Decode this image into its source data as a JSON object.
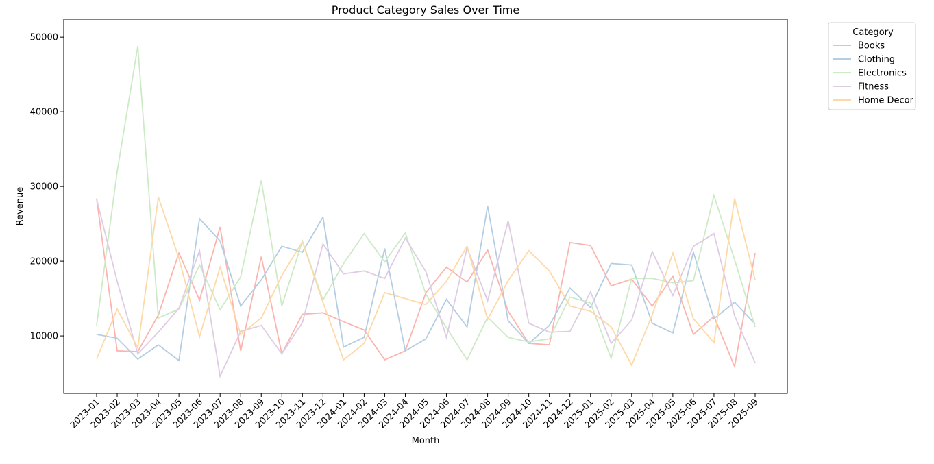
{
  "chart_data": {
    "type": "line",
    "title": "Product Category Sales Over Time",
    "xlabel": "Month",
    "ylabel": "Revenue",
    "ylim": [
      2300,
      52400
    ],
    "yticks": [
      10000,
      20000,
      30000,
      40000,
      50000
    ],
    "grid": false,
    "legend_title": "Category",
    "legend_position": "outside-top-right",
    "categories": [
      "2023-01",
      "2023-02",
      "2023-03",
      "2023-04",
      "2023-05",
      "2023-06",
      "2023-07",
      "2023-08",
      "2023-09",
      "2023-10",
      "2023-11",
      "2023-12",
      "2024-01",
      "2024-02",
      "2024-03",
      "2024-04",
      "2024-05",
      "2024-06",
      "2024-07",
      "2024-08",
      "2024-09",
      "2024-10",
      "2024-11",
      "2024-12",
      "2025-01",
      "2025-02",
      "2025-03",
      "2025-04",
      "2025-05",
      "2025-06",
      "2025-07",
      "2025-08",
      "2025-09"
    ],
    "series": [
      {
        "name": "Books",
        "color": "#fbb4ae",
        "values": [
          28400,
          8000,
          7900,
          12800,
          21100,
          14800,
          24600,
          8000,
          20600,
          7600,
          12900,
          13100,
          11900,
          10800,
          6800,
          8000,
          15800,
          19200,
          17200,
          21500,
          13300,
          9000,
          8800,
          22500,
          22100,
          16700,
          17600,
          14000,
          18000,
          10200,
          12600,
          5900,
          21100
        ]
      },
      {
        "name": "Clothing",
        "color": "#b3cde3",
        "values": [
          10200,
          9700,
          6900,
          8800,
          6700,
          25700,
          22700,
          14000,
          17500,
          22000,
          21200,
          25900,
          8500,
          9800,
          21700,
          8000,
          9600,
          14900,
          11200,
          27400,
          12000,
          9000,
          11400,
          16400,
          13800,
          19700,
          19500,
          11700,
          10400,
          21200,
          12300,
          14500,
          11600
        ]
      },
      {
        "name": "Electronics",
        "color": "#ccebc5",
        "values": [
          11400,
          32000,
          48800,
          12400,
          13600,
          19500,
          13500,
          17900,
          30800,
          14000,
          22700,
          14800,
          19700,
          23700,
          19900,
          23800,
          15600,
          11100,
          6800,
          12500,
          9800,
          9200,
          9600,
          15200,
          14400,
          7000,
          17700,
          17700,
          17100,
          17400,
          28800,
          20200,
          11200
        ]
      },
      {
        "name": "Fitness",
        "color": "#decbe4",
        "values": [
          28300,
          17300,
          7600,
          10500,
          13700,
          21400,
          4600,
          10600,
          11400,
          7600,
          11800,
          22300,
          18300,
          18700,
          17700,
          23100,
          18600,
          9800,
          21800,
          14700,
          25400,
          11700,
          10500,
          10600,
          15900,
          9000,
          12100,
          21300,
          15400,
          22000,
          23700,
          12700,
          6400
        ]
      },
      {
        "name": "Home Decor",
        "color": "#fed9a6",
        "values": [
          6900,
          13600,
          8400,
          28600,
          20400,
          9900,
          19200,
          10200,
          12400,
          18100,
          22600,
          14500,
          6800,
          9000,
          15800,
          15000,
          14200,
          17300,
          22000,
          12200,
          17400,
          21400,
          18700,
          14000,
          13300,
          11200,
          6100,
          12800,
          21100,
          12300,
          9100,
          28400,
          17500
        ]
      }
    ]
  }
}
